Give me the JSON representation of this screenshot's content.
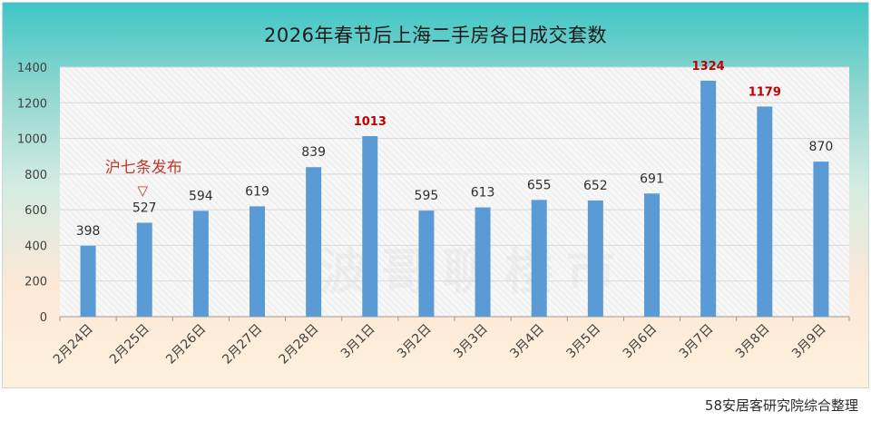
{
  "chart_data": {
    "type": "bar",
    "title": "2026年春节后上海二手房各日成交套数",
    "categories": [
      "2月24日",
      "2月25日",
      "2月26日",
      "2月27日",
      "2月28日",
      "3月1日",
      "3月2日",
      "3月3日",
      "3月4日",
      "3月5日",
      "3月6日",
      "3月7日",
      "3月8日",
      "3月9日"
    ],
    "series": [
      {
        "values": [
          398,
          527,
          594,
          619,
          839,
          1013,
          595,
          613,
          655,
          652,
          691,
          1324,
          1179,
          870
        ]
      }
    ],
    "highlighted": [
      "3月1日",
      "3月7日",
      "3月8日"
    ],
    "annotation": {
      "text": "沪七条发布",
      "marker": "▽",
      "category": "2月25日"
    },
    "ylim": [
      0,
      1400
    ],
    "yticks": [
      0,
      200,
      400,
      600,
      800,
      1000,
      1200,
      1400
    ],
    "grid": true,
    "legend": "none",
    "colors": {
      "bar": "#5b9bd5",
      "label": "#2f2f2f",
      "highlight_label": "#c00000",
      "annotation": "#c0392b",
      "grid": "#d9d9d9",
      "axis_text": "#404040"
    }
  },
  "watermark_text": "波哥聊楼市",
  "source": "58安居客研究院综合整理"
}
